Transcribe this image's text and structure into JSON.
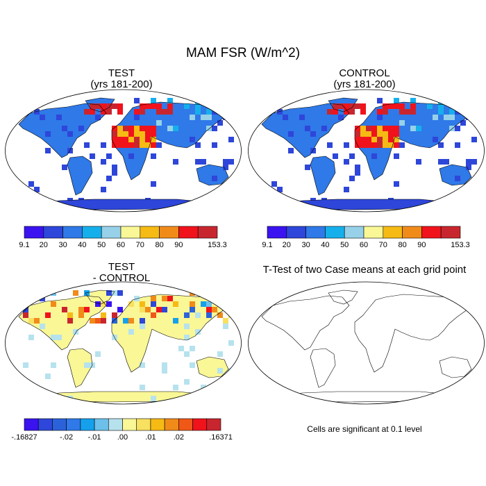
{
  "title": "MAM FSR (W/m^2)",
  "panels": [
    {
      "id": "test",
      "title_line1": "TEST",
      "title_line2": "(yrs 181-200)"
    },
    {
      "id": "control",
      "title_line1": "CONTROL",
      "title_line2": "(yrs 181-200)"
    },
    {
      "id": "diff",
      "title_line1": "TEST",
      "title_line2": "- CONTROL"
    },
    {
      "id": "ttest",
      "title_line1": "T-Test of two Case means at each grid point"
    }
  ],
  "significance_note": "Cells are significant at 0.1 level",
  "colorbars": {
    "abs": {
      "labels": [
        "9.1",
        "20",
        "30",
        "40",
        "50",
        "60",
        "70",
        "80",
        "90",
        "153.3"
      ],
      "colors": [
        "#3a13f0",
        "#2e46d9",
        "#2f79e8",
        "#15b0ec",
        "#96d1e9",
        "#f9f796",
        "#f6ba14",
        "#f08b1a",
        "#f0131c",
        "#c8262f"
      ]
    },
    "diff": {
      "labels": [
        "-.16827",
        "-.02",
        "-.01",
        ".00",
        ".01",
        ".02",
        ".16371"
      ],
      "colors": [
        "#3a13f0",
        "#2e46d9",
        "#2c62d9",
        "#2f79e8",
        "#15a0ec",
        "#6cc0ea",
        "#b6e2ee",
        "#f9f796",
        "#f8e060",
        "#f6ba14",
        "#f08b1a",
        "#f05818",
        "#f0131c",
        "#c8262f"
      ]
    }
  }
}
